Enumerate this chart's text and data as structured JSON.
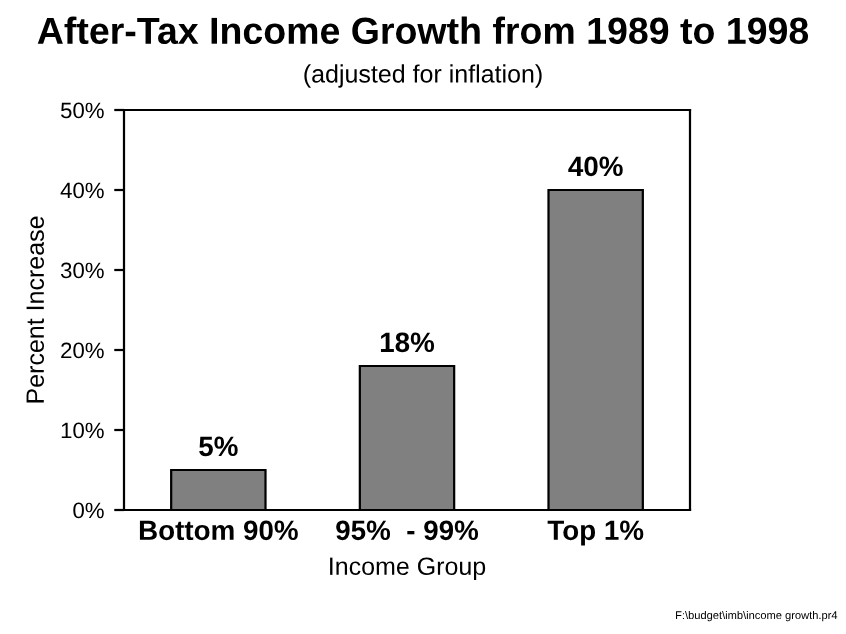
{
  "chart_data": {
    "type": "bar",
    "title": "After-Tax Income Growth from 1989 to 1998",
    "subtitle": "(adjusted for inflation)",
    "xlabel": "Income Group",
    "ylabel": "Percent Increase",
    "categories": [
      "Bottom 90%",
      "95%  - 99%",
      "Top 1%"
    ],
    "values": [
      5,
      18,
      40
    ],
    "value_labels": [
      "5%",
      "18%",
      "40%"
    ],
    "color": "#808080",
    "ylim": [
      0,
      50
    ],
    "yticks": [
      {
        "value": 0,
        "label": "0%"
      },
      {
        "value": 10,
        "label": "10%"
      },
      {
        "value": 20,
        "label": "20%"
      },
      {
        "value": 30,
        "label": "30%"
      },
      {
        "value": 40,
        "label": "40%"
      },
      {
        "value": 50,
        "label": "50%"
      }
    ],
    "grid": false,
    "legend": false,
    "annotations": [
      "F:\\budget\\imb\\income growth.pr4"
    ]
  }
}
